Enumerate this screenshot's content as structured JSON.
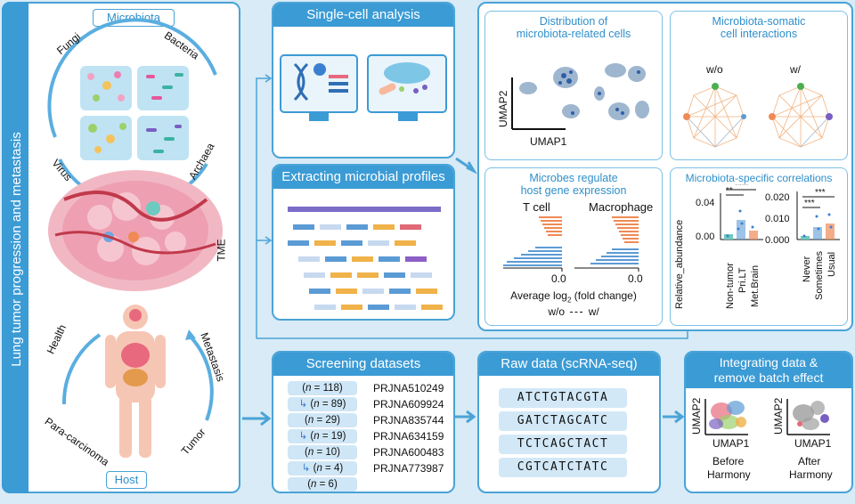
{
  "side_title": "Lung tumor progression and metastasis",
  "left_panel": {
    "microbiota_label": "Microbiota",
    "kingdoms": [
      "Fungi",
      "Bacteria",
      "Virus",
      "Archaea"
    ],
    "tme_label": "TME",
    "host_label": "Host",
    "stages": [
      "Health",
      "Metastasis",
      "Para-carcinoma",
      "Tumor"
    ]
  },
  "single_cell": {
    "title": "Single-cell analysis"
  },
  "extracting": {
    "title": "Extracting microbial profiles"
  },
  "results": {
    "distribution": {
      "title_line1": "Distribution of",
      "title_line2": "microbiota-related cells",
      "xaxis": "UMAP1",
      "yaxis": "UMAP2"
    },
    "interactions": {
      "title_line1": "Microbiota-somatic",
      "title_line2": "cell interactions",
      "label_without": "w/o",
      "label_with": "w/"
    },
    "regulate": {
      "title_line1": "Microbes regulate",
      "title_line2": "host gene expression",
      "panel_left": "T cell",
      "panel_right": "Macrophage",
      "tick_left": "0.0",
      "tick_right": "0.0",
      "xlabel_pre": "Average log",
      "xlabel_sub": "2",
      "xlabel_post": " (fold change)",
      "legend_without": "w/o",
      "legend_with": "w/"
    },
    "correlations": {
      "title": "Microbiota-specific correlations",
      "ylabel": "Relative_abundance",
      "left_ticks": [
        "0.04",
        "0.00"
      ],
      "right_ticks": [
        "0.020",
        "0.010",
        "0.000"
      ],
      "left_groups": [
        "Non-tumor",
        "Pri.LT",
        "Met.Brain"
      ],
      "right_groups": [
        "Never",
        "Sometimes",
        "Usual"
      ],
      "sig_labels": [
        "**",
        "****",
        "***",
        "***"
      ]
    }
  },
  "screening": {
    "title": "Screening datasets",
    "rows": [
      {
        "n": "118",
        "id": "PRJNA510249",
        "arrow": false
      },
      {
        "n": "89",
        "id": "PRJNA609924",
        "arrow": true
      },
      {
        "n": "29",
        "id": "PRJNA835744",
        "arrow": false
      },
      {
        "n": "19",
        "id": "PRJNA634159",
        "arrow": true
      },
      {
        "n": "10",
        "id": "PRJNA600483",
        "arrow": false
      },
      {
        "n": "4",
        "id": "PRJNA773987",
        "arrow": true
      },
      {
        "n": "6",
        "id": "",
        "arrow": false
      }
    ],
    "n_prefix": "(",
    "n_symbol": "n",
    "n_eq": " = ",
    "n_suffix": ")"
  },
  "raw": {
    "title": "Raw data (scRNA-seq)",
    "sequences": [
      "ATCTGTACGTA",
      "GATCTAGCATC",
      "TCTCAGCTACT",
      "CGTCATCTATC"
    ]
  },
  "integrating": {
    "title_line1": "Integrating data &",
    "title_line2": "remove batch effect",
    "yaxis": "UMAP2",
    "xaxis": "UMAP1",
    "before_line1": "Before",
    "before_line2": "Harmony",
    "after_line1": "After",
    "after_line2": "Harmony"
  },
  "colors": {
    "accent": "#3b9bd5",
    "border": "#4aa3d6",
    "orange": "#f08a55",
    "blue": "#5b9bd5",
    "background": "#d8ebf6"
  }
}
